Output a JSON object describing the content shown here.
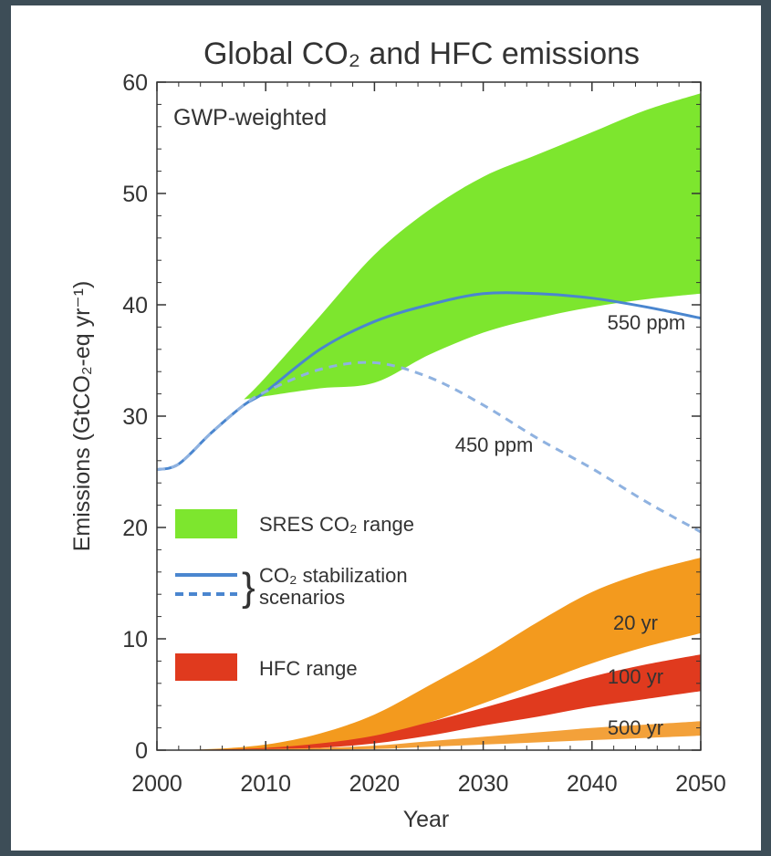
{
  "chart_data": {
    "type": "area",
    "title": "Global CO₂ and HFC emissions",
    "subtitle": "GWP-weighted",
    "xlabel": "Year",
    "ylabel": "Emissions (GtCO₂-eq yr⁻¹)",
    "xlim": [
      2000,
      2050
    ],
    "ylim": [
      0,
      60
    ],
    "x_ticks": [
      2000,
      2010,
      2020,
      2030,
      2040,
      2050
    ],
    "y_ticks": [
      0,
      10,
      20,
      30,
      40,
      50,
      60
    ],
    "grid": false,
    "legend_position": "lower-left",
    "legend": [
      {
        "label": "SRES CO₂ range",
        "kind": "area",
        "color": "#7de62e"
      },
      {
        "label": "CO₂ stabilization",
        "label2": "scenarios",
        "kind": "lines",
        "color": "#4a86cf"
      },
      {
        "label": "HFC range",
        "kind": "area",
        "color": "#e03a1e"
      }
    ],
    "bands": [
      {
        "name": "SRES CO₂ range",
        "color": "#7de62e",
        "x": [
          2008,
          2010,
          2015,
          2020,
          2025,
          2030,
          2035,
          2040,
          2045,
          2050
        ],
        "lower": [
          31.5,
          31.8,
          32.5,
          33,
          35.5,
          37.5,
          38.8,
          39.8,
          40.5,
          41
        ],
        "upper": [
          31.5,
          33.5,
          39,
          44.5,
          48.5,
          51.5,
          53.5,
          55.5,
          57.5,
          59
        ]
      },
      {
        "name": "20 yr",
        "color": "#f39a1e",
        "x": [
          2000,
          2005,
          2010,
          2015,
          2020,
          2025,
          2030,
          2035,
          2040,
          2045,
          2050
        ],
        "lower": [
          0,
          0,
          0.1,
          0.5,
          1.2,
          2.5,
          4.2,
          6,
          7.8,
          9.3,
          10.5
        ],
        "upper": [
          0,
          0.1,
          0.5,
          1.5,
          3.2,
          5.8,
          8.5,
          11.5,
          14.2,
          16,
          17.3
        ]
      },
      {
        "name": "100 yr",
        "color": "#e03a1e",
        "x": [
          2000,
          2005,
          2010,
          2015,
          2020,
          2025,
          2030,
          2035,
          2040,
          2045,
          2050
        ],
        "lower": [
          0,
          0,
          0.05,
          0.2,
          0.6,
          1.3,
          2.2,
          3,
          3.9,
          4.6,
          5.3
        ],
        "upper": [
          0,
          0.05,
          0.2,
          0.6,
          1.3,
          2.5,
          3.8,
          5.2,
          6.6,
          7.7,
          8.6
        ]
      },
      {
        "name": "500 yr",
        "color": "#f3a13a",
        "x": [
          2000,
          2005,
          2010,
          2015,
          2020,
          2025,
          2030,
          2035,
          2040,
          2045,
          2050
        ],
        "lower": [
          0,
          0,
          0,
          0.05,
          0.1,
          0.3,
          0.5,
          0.7,
          0.9,
          1.1,
          1.3
        ],
        "upper": [
          0,
          0.02,
          0.1,
          0.2,
          0.4,
          0.8,
          1.2,
          1.6,
          2,
          2.3,
          2.6
        ]
      }
    ],
    "series": [
      {
        "name": "550 ppm",
        "style": "solid",
        "color": "#4a86cf",
        "x": [
          2000,
          2002,
          2005,
          2008,
          2010,
          2015,
          2020,
          2025,
          2030,
          2035,
          2040,
          2045,
          2050
        ],
        "values": [
          25.2,
          25.7,
          28.5,
          31,
          32.2,
          36,
          38.5,
          40,
          41,
          41,
          40.6,
          39.8,
          38.8
        ]
      },
      {
        "name": "450 ppm",
        "style": "dashed",
        "color": "#8fb2e0",
        "x": [
          2000,
          2002,
          2005,
          2008,
          2010,
          2015,
          2020,
          2025,
          2030,
          2035,
          2040,
          2045,
          2050
        ],
        "values": [
          25.2,
          25.7,
          28.5,
          31,
          32.2,
          34.2,
          34.8,
          33.5,
          31,
          28,
          25.3,
          22.3,
          19.6
        ]
      }
    ],
    "annotations": [
      {
        "text": "550 ppm",
        "x": 2045,
        "y": 37.8
      },
      {
        "text": "450 ppm",
        "x": 2031,
        "y": 26.8
      },
      {
        "text": "20 yr",
        "x": 2044,
        "y": 10.8
      },
      {
        "text": "100 yr",
        "x": 2044,
        "y": 6
      },
      {
        "text": "500 yr",
        "x": 2044,
        "y": 1.4
      }
    ]
  }
}
